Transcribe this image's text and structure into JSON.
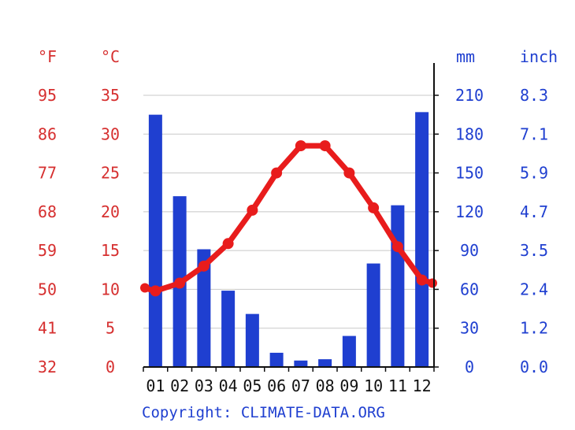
{
  "chart_data": {
    "type": "bar+line",
    "categories": [
      "01",
      "02",
      "03",
      "04",
      "05",
      "06",
      "07",
      "08",
      "09",
      "10",
      "11",
      "12"
    ],
    "series": [
      {
        "values": [
          195,
          132,
          91,
          59,
          41,
          11,
          5,
          6,
          24,
          80,
          125,
          197
        ],
        "axis": "precipitation",
        "type": "bar",
        "color": "#1f3fd0"
      },
      {
        "values": [
          9.8,
          10.8,
          13.0,
          15.9,
          20.2,
          25.0,
          28.5,
          28.5,
          25.0,
          20.5,
          15.5,
          11.2
        ],
        "axis": "temperature",
        "type": "line",
        "color": "#e81c1c"
      }
    ],
    "left_axes": {
      "fahrenheit": {
        "unit": "°F",
        "ticks": [
          "95",
          "86",
          "77",
          "68",
          "59",
          "50",
          "41",
          "32"
        ]
      },
      "celsius": {
        "unit": "°C",
        "ticks": [
          "35",
          "30",
          "25",
          "20",
          "15",
          "10",
          "5",
          "0"
        ],
        "ylim": [
          0,
          35
        ]
      }
    },
    "right_axes": {
      "mm": {
        "unit": "mm",
        "ticks": [
          "210",
          "180",
          "150",
          "120",
          "90",
          "60",
          "30",
          "0"
        ],
        "ylim": [
          0,
          210
        ]
      },
      "inch": {
        "unit": "inch",
        "ticks": [
          "8.3",
          "7.1",
          "5.9",
          "4.7",
          "3.5",
          "2.4",
          "1.2",
          "0.0"
        ]
      }
    },
    "grid": true,
    "copyright": "Copyright: CLIMATE-DATA.ORG"
  }
}
